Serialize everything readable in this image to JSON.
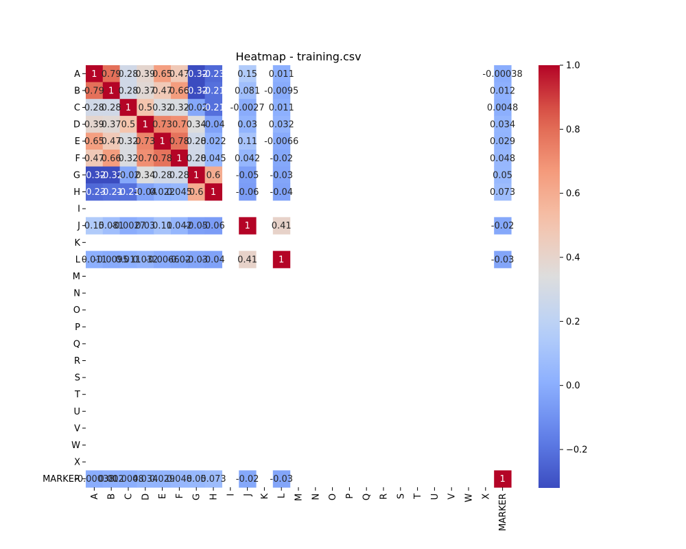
{
  "chart_data": {
    "type": "heatmap",
    "title": "Heatmap - training.csv",
    "colormap": "coolwarm",
    "vmin": -0.32,
    "vmax": 1.0,
    "labels": [
      "A",
      "B",
      "C",
      "D",
      "E",
      "F",
      "G",
      "H",
      "I",
      "J",
      "K",
      "L",
      "M",
      "N",
      "O",
      "P",
      "Q",
      "R",
      "S",
      "T",
      "U",
      "V",
      "W",
      "X",
      "MARKER"
    ],
    "annotations": {
      "A": {
        "A": "1",
        "B": "0.79",
        "C": "0.28",
        "D": "0.39",
        "E": "0.65",
        "F": "0.47",
        "G": "-0.32",
        "H": "-0.23",
        "J": "0.15",
        "L": "0.011",
        "MARKER": "-0.00038"
      },
      "B": {
        "A": "0.79",
        "B": "1",
        "C": "0.28",
        "D": "0.37",
        "E": "0.47",
        "F": "0.66",
        "G": "-0.32",
        "H": "-0.21",
        "J": "0.081",
        "L": "-0.0095",
        "MARKER": "0.012"
      },
      "C": {
        "A": "0.28",
        "B": "0.28",
        "C": "1",
        "D": "0.5",
        "E": "0.32",
        "F": "0.32",
        "G": "-0.02",
        "H": "-0.21",
        "J": "-0.0027",
        "L": "0.011",
        "MARKER": "0.0048"
      },
      "D": {
        "A": "0.39",
        "B": "0.37",
        "C": "0.5",
        "D": "1",
        "E": "0.73",
        "F": "0.7",
        "G": "0.34",
        "H": "-0.04",
        "J": "0.03",
        "L": "0.032",
        "MARKER": "0.034"
      },
      "E": {
        "A": "0.65",
        "B": "0.47",
        "C": "0.32",
        "D": "0.73",
        "E": "1",
        "F": "0.78",
        "G": "0.28",
        "H": "0.022",
        "J": "0.11",
        "L": "-0.0066",
        "MARKER": "0.029"
      },
      "F": {
        "A": "0.47",
        "B": "0.66",
        "C": "0.32",
        "D": "0.7",
        "E": "0.78",
        "F": "1",
        "G": "0.28",
        "H": "0.045",
        "J": "0.042",
        "L": "-0.02",
        "MARKER": "0.048"
      },
      "G": {
        "A": "-0.32",
        "B": "-0.32",
        "C": "-0.02",
        "D": "0.34",
        "E": "0.28",
        "F": "0.28",
        "G": "1",
        "H": "0.6",
        "J": "-0.05",
        "L": "-0.03",
        "MARKER": "0.05"
      },
      "H": {
        "A": "-0.23",
        "B": "-0.21",
        "C": "-0.21",
        "D": "-0.04",
        "E": "0.022",
        "F": "0.045",
        "G": "0.6",
        "H": "1",
        "J": "-0.06",
        "L": "-0.04",
        "MARKER": "0.073"
      },
      "J": {
        "A": "0.15",
        "B": "0.081",
        "C": "-0.0027",
        "D": "0.03",
        "E": "0.11",
        "F": "0.042",
        "G": "-0.05",
        "H": "-0.06",
        "J": "1",
        "L": "0.41",
        "MARKER": "-0.02"
      },
      "L": {
        "A": "0.011",
        "B": "-0.0095",
        "C": "0.011",
        "D": "0.032",
        "E": "-0.0066",
        "F": "-0.02",
        "G": "-0.03",
        "H": "-0.04",
        "J": "0.41",
        "L": "1",
        "MARKER": "-0.03"
      },
      "MARKER": {
        "A": "-0.00038",
        "B": "0.012",
        "C": "0.0048",
        "D": "0.034",
        "E": "0.029",
        "F": "0.048",
        "G": "0.05",
        "H": "0.073",
        "J": "-0.02",
        "L": "-0.03",
        "MARKER": "1"
      }
    },
    "colorbar": {
      "ticks": [
        -0.2,
        0.0,
        0.2,
        0.4,
        0.6,
        0.8,
        1.0
      ],
      "tick_labels": [
        "−0.2",
        "0.0",
        "0.2",
        "0.4",
        "0.6",
        "0.8",
        "1.0"
      ]
    }
  }
}
